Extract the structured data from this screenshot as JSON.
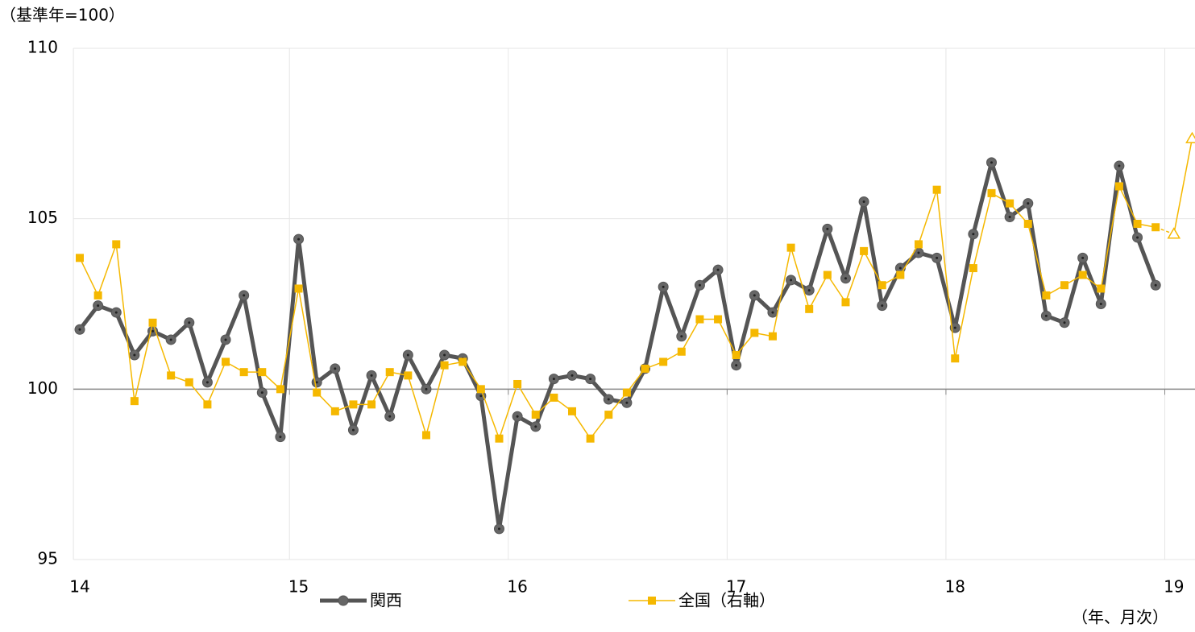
{
  "chart_data": {
    "type": "line",
    "y_unit_label": "（基準年=100）",
    "x_unit_label": "（年、月次）",
    "categories": [
      "14",
      null,
      null,
      null,
      null,
      null,
      null,
      null,
      null,
      null,
      null,
      null,
      "15",
      null,
      null,
      null,
      null,
      null,
      null,
      null,
      null,
      null,
      null,
      null,
      "16",
      null,
      null,
      null,
      null,
      null,
      null,
      null,
      null,
      null,
      null,
      null,
      "17",
      null,
      null,
      null,
      null,
      null,
      null,
      null,
      null,
      null,
      null,
      null,
      "18",
      null,
      null,
      null,
      null,
      null,
      null,
      null,
      null,
      null,
      null,
      null,
      "19",
      null
    ],
    "ylim": [
      95,
      110
    ],
    "yticks": [
      95,
      100,
      105,
      110
    ],
    "x_axis_at": 100,
    "grid": true,
    "series": [
      {
        "name": "関西",
        "color": "#555555",
        "marker": "circle",
        "values": [
          101.75,
          102.45,
          102.25,
          101.0,
          101.7,
          101.45,
          101.95,
          100.2,
          101.45,
          102.75,
          99.9,
          98.6,
          104.4,
          100.2,
          100.6,
          98.8,
          100.4,
          99.2,
          101.0,
          100.0,
          101.0,
          100.9,
          99.8,
          95.9,
          99.2,
          98.9,
          100.3,
          100.4,
          100.3,
          99.7,
          99.6,
          100.6,
          103.0,
          101.55,
          103.05,
          103.5,
          100.7,
          102.75,
          102.25,
          103.2,
          102.9,
          104.7,
          103.25,
          105.5,
          102.45,
          103.55,
          104.0,
          103.85,
          101.8,
          104.55,
          106.65,
          105.05,
          105.45,
          102.15,
          101.95,
          103.85,
          102.5,
          106.55,
          104.45,
          103.05,
          null,
          null
        ]
      },
      {
        "name": "全国（右軸）",
        "color": "#f5b800",
        "marker": "square",
        "estimate_start": 60,
        "values": [
          103.85,
          102.75,
          104.25,
          99.65,
          101.95,
          100.4,
          100.2,
          99.55,
          100.8,
          100.5,
          100.5,
          100.0,
          102.95,
          99.9,
          99.35,
          99.55,
          99.55,
          100.5,
          100.4,
          98.65,
          100.7,
          100.8,
          100.0,
          98.55,
          100.15,
          99.25,
          99.75,
          99.35,
          98.55,
          99.25,
          99.9,
          100.6,
          100.8,
          101.1,
          102.05,
          102.05,
          101.0,
          101.65,
          101.55,
          104.15,
          102.35,
          103.35,
          102.55,
          104.05,
          103.05,
          103.35,
          104.25,
          105.85,
          100.9,
          103.55,
          105.75,
          105.45,
          104.85,
          102.75,
          103.05,
          103.35,
          102.95,
          105.95,
          104.85,
          104.75,
          104.55,
          107.35
        ]
      }
    ]
  }
}
